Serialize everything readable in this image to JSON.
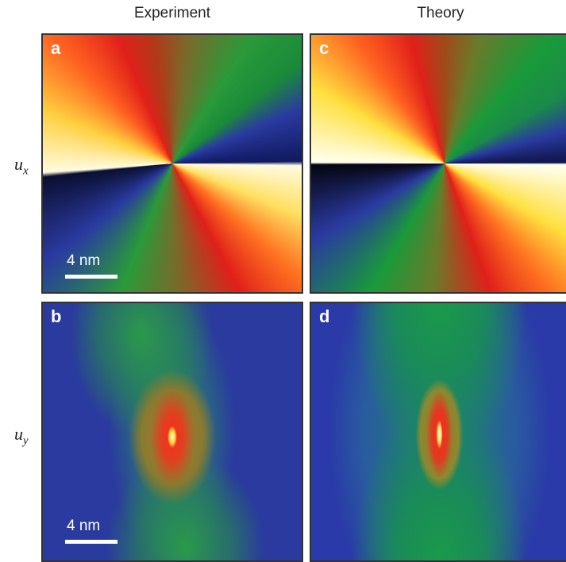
{
  "columns": [
    "Experiment",
    "Theory"
  ],
  "rows": [
    {
      "symbol": "u",
      "subscript": "x"
    },
    {
      "symbol": "u",
      "subscript": "y"
    }
  ],
  "panels": [
    {
      "label": "a",
      "scale_bar": "4 nm"
    },
    {
      "label": "b",
      "scale_bar": "4 nm"
    },
    {
      "label": "c"
    },
    {
      "label": "d"
    }
  ]
}
